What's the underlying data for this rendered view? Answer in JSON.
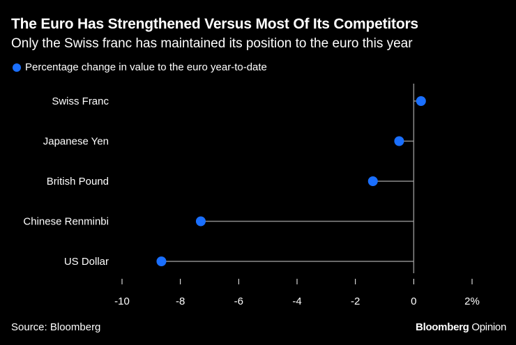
{
  "chart_data": {
    "type": "dot",
    "title": "The Euro Has Strengthened Versus Most Of Its Competitors",
    "subtitle": "Only the Swiss franc has maintained its position to the euro this year",
    "legend": "Percentage change in value to the euro year-to-date",
    "categories": [
      "Swiss Franc",
      "Japanese Yen",
      "British Pound",
      "Chinese Renminbi",
      "US Dollar"
    ],
    "values": [
      0.25,
      -0.5,
      -1.4,
      -7.3,
      -8.65
    ],
    "xlim": [
      -10.3,
      2.5
    ],
    "xticks": [
      -10,
      -8,
      -6,
      -4,
      -2,
      0,
      2
    ],
    "xtick_labels": [
      "-10",
      "-8",
      "-6",
      "-4",
      "-2",
      "0",
      "2%"
    ],
    "colors": {
      "dot": "#1a6fff",
      "line": "#8c8c8c",
      "background": "#000000"
    }
  },
  "footer": {
    "source": "Source: Bloomberg",
    "brand_main": "Bloomberg",
    "brand_sub": "Opinion"
  }
}
